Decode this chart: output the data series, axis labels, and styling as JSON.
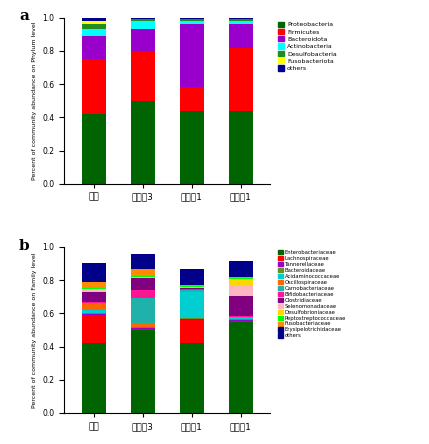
{
  "categories": [
    "对照",
    "对比夃3",
    "实施夃1",
    "对比夃1"
  ],
  "phylum_labels": [
    "Proteobacteria",
    "Firmicutes",
    "Bacteroidota",
    "Actinobacteria",
    "Desulfobacteria",
    "Fusobacteriota",
    "others"
  ],
  "phylum_colors": [
    "#006400",
    "#FF0000",
    "#9900CC",
    "#00FFFF",
    "#228B22",
    "#FFFF00",
    "#00008B"
  ],
  "phylum_data": {
    "对照": [
      0.42,
      0.33,
      0.14,
      0.04,
      0.03,
      0.02,
      0.02
    ],
    "对比夃3": [
      0.5,
      0.3,
      0.13,
      0.05,
      0.01,
      0.005,
      0.005
    ],
    "实施夃1": [
      0.44,
      0.14,
      0.38,
      0.02,
      0.01,
      0.005,
      0.005
    ],
    "对比夃1": [
      0.44,
      0.38,
      0.14,
      0.02,
      0.01,
      0.005,
      0.005
    ]
  },
  "family_labels": [
    "Enterobacteriaceae",
    "Lachnospiraceae",
    "Tannerellaceae",
    "Bacteroidaceae",
    "Acidaminococcaceae",
    "Oscillospiraceae",
    "Carnobacteriaceae",
    "Bifidobacteriaceae",
    "Clostridiaceae",
    "Selenomonadaceae",
    "Desulfobrioniaceae",
    "Peptostreptococcaceae",
    "Fusobacteriaceae",
    "Erysipelotrichidaceae",
    "others"
  ],
  "family_colors": [
    "#006400",
    "#FF0000",
    "#9900CC",
    "#6B8E23",
    "#00CED1",
    "#FF6600",
    "#20B2AA",
    "#FF1493",
    "#800080",
    "#FFB6C1",
    "#FFD700",
    "#00FF00",
    "#FF8C00",
    "#000080",
    "#00008B"
  ],
  "family_data": {
    "对照": [
      0.42,
      0.17,
      0.005,
      0.005,
      0.02,
      0.04,
      0.005,
      0.005,
      0.06,
      0.01,
      0.005,
      0.005,
      0.04,
      0.01,
      0.1
    ],
    "对比夃3": [
      0.5,
      0.005,
      0.005,
      0.005,
      0.005,
      0.02,
      0.15,
      0.05,
      0.07,
      0.005,
      0.005,
      0.005,
      0.04,
      0.005,
      0.09
    ],
    "实施夃1": [
      0.42,
      0.14,
      0.005,
      0.005,
      0.16,
      0.005,
      0.005,
      0.005,
      0.005,
      0.005,
      0.005,
      0.005,
      0.005,
      0.005,
      0.09
    ],
    "对比夃1": [
      0.55,
      0.005,
      0.005,
      0.005,
      0.005,
      0.005,
      0.005,
      0.005,
      0.12,
      0.06,
      0.04,
      0.01,
      0.005,
      0.005,
      0.09
    ]
  },
  "phylum_ylabel": "Percent of community abundance on Phylum level",
  "family_ylabel": "Percent of community abundance on Family level",
  "bar_width": 0.5,
  "figsize": [
    4.29,
    4.44
  ],
  "dpi": 100
}
